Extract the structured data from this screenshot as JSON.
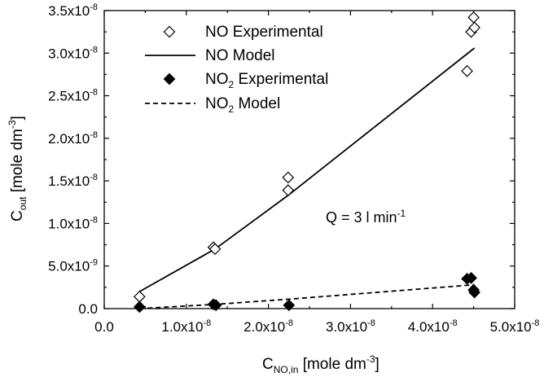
{
  "chart_data": {
    "type": "scatter",
    "xlabel": {
      "main": "C",
      "sub": "NO,in",
      "rest": " [mole  dm",
      "sup": "-3",
      "end": "]"
    },
    "ylabel": {
      "main": "C",
      "sub": "out",
      "rest": " [mole dm",
      "sup": "-3",
      "end": "]"
    },
    "xlim": [
      0,
      5e-08
    ],
    "ylim": [
      0,
      3.5e-08
    ],
    "x_ticks": [
      {
        "value": 0,
        "m": "0.0",
        "e": ""
      },
      {
        "value": 1e-08,
        "m": "1.0x10",
        "e": "-8"
      },
      {
        "value": 2e-08,
        "m": "2.0x10",
        "e": "-8"
      },
      {
        "value": 3e-08,
        "m": "3.0x10",
        "e": "-8"
      },
      {
        "value": 4e-08,
        "m": "4.0x10",
        "e": "-8"
      },
      {
        "value": 5e-08,
        "m": "5.0x10",
        "e": "-8"
      }
    ],
    "y_ticks": [
      {
        "value": 0,
        "m": "0.0",
        "e": ""
      },
      {
        "value": 5e-09,
        "m": "5.0x10",
        "e": "-9"
      },
      {
        "value": 1e-08,
        "m": "1.0x10",
        "e": "-8"
      },
      {
        "value": 1.5e-08,
        "m": "1.5x10",
        "e": "-8"
      },
      {
        "value": 2e-08,
        "m": "2.0x10",
        "e": "-8"
      },
      {
        "value": 2.5e-08,
        "m": "2.5x10",
        "e": "-8"
      },
      {
        "value": 3e-08,
        "m": "3.0x10",
        "e": "-8"
      },
      {
        "value": 3.5e-08,
        "m": "3.5x10",
        "e": "-8"
      }
    ],
    "annotation": {
      "text": "Q = 3 l min",
      "sup": "-1"
    },
    "series": [
      {
        "name": "NO Experimental",
        "style": "open-diamond",
        "points": [
          [
            4.3e-09,
            1.4e-09
          ],
          [
            1.33e-08,
            7.2e-09
          ],
          [
            1.35e-08,
            7e-09
          ],
          [
            2.24e-08,
            1.54e-08
          ],
          [
            2.24e-08,
            1.39e-08
          ],
          [
            4.42e-08,
            2.79e-08
          ],
          [
            4.47e-08,
            3.25e-08
          ],
          [
            4.51e-08,
            3.3e-08
          ],
          [
            4.5e-08,
            3.42e-08
          ]
        ]
      },
      {
        "name": "NO Model",
        "style": "solid-line",
        "points": [
          [
            4.3e-09,
            2e-09
          ],
          [
            1.35e-08,
            7e-09
          ],
          [
            2.24e-08,
            1.33e-08
          ],
          [
            4.51e-08,
            3.06e-08
          ]
        ]
      },
      {
        "name": "NO2 Experimental",
        "legend_main": "NO",
        "legend_sub": "2",
        "legend_rest": " Experimental",
        "style": "filled-diamond",
        "points": [
          [
            4.3e-09,
            2e-10
          ],
          [
            1.33e-08,
            5e-10
          ],
          [
            1.36e-08,
            4e-10
          ],
          [
            2.25e-08,
            4e-10
          ],
          [
            4.42e-08,
            3.5e-09
          ],
          [
            4.47e-08,
            3.6e-09
          ],
          [
            4.5e-08,
            2.2e-09
          ],
          [
            4.51e-08,
            1.9e-09
          ]
        ]
      },
      {
        "name": "NO2 Model",
        "legend_main": "NO",
        "legend_sub": "2",
        "legend_rest": " Model",
        "style": "dashed-line",
        "points": [
          [
            4.3e-09,
            0.0
          ],
          [
            1.35e-08,
            5e-10
          ],
          [
            2.24e-08,
            1.1e-09
          ],
          [
            4.51e-08,
            2.8e-09
          ]
        ]
      }
    ]
  }
}
